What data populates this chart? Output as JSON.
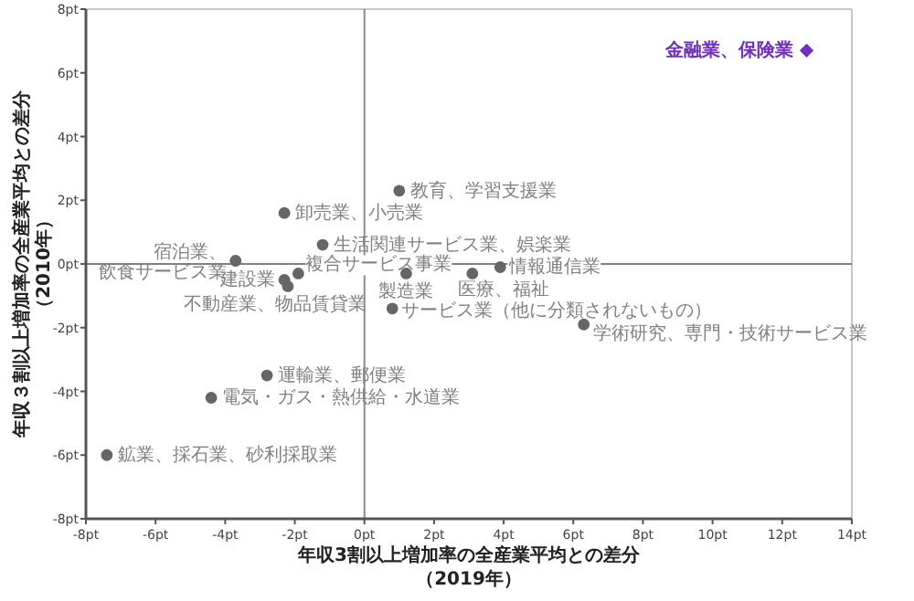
{
  "chart_data": {
    "type": "scatter",
    "xlabel": "年収3割以上増加率の全産業平均との差分（2019年）",
    "ylabel": "年収３割以上増加率の全産業平均との差分（2010年）",
    "xlim": [
      -8,
      14
    ],
    "ylim": [
      -8,
      8
    ],
    "xticks": [
      {
        "value": -8,
        "label": "-8pt"
      },
      {
        "value": -6,
        "label": "-6pt"
      },
      {
        "value": -4,
        "label": "-4pt"
      },
      {
        "value": -2,
        "label": "-2pt"
      },
      {
        "value": 0,
        "label": "0pt"
      },
      {
        "value": 2,
        "label": "2pt"
      },
      {
        "value": 4,
        "label": "4pt"
      },
      {
        "value": 6,
        "label": "6pt"
      },
      {
        "value": 8,
        "label": "8pt"
      },
      {
        "value": 10,
        "label": "10pt"
      },
      {
        "value": 12,
        "label": "12pt"
      },
      {
        "value": 14,
        "label": "14pt"
      }
    ],
    "yticks": [
      {
        "value": -8,
        "label": "-8pt"
      },
      {
        "value": -6,
        "label": "-6pt"
      },
      {
        "value": -4,
        "label": "-4pt"
      },
      {
        "value": -2,
        "label": "-2pt"
      },
      {
        "value": 0,
        "label": "0pt"
      },
      {
        "value": 2,
        "label": "2pt"
      },
      {
        "value": 4,
        "label": "4pt"
      },
      {
        "value": 6,
        "label": "6pt"
      },
      {
        "value": 8,
        "label": "8pt"
      }
    ],
    "ref_lines": [
      {
        "axis": "x",
        "value": 0,
        "color": "#8c8c8c"
      },
      {
        "axis": "y",
        "value": 0,
        "color": "#7f7f7f"
      }
    ],
    "series": [
      {
        "color": "#666666",
        "marker": "circle",
        "x": [
          1.0,
          -2.3,
          -1.2,
          -3.7,
          -1.9,
          -2.3,
          -2.2,
          1.2,
          3.1,
          3.9,
          0.8,
          6.3,
          -2.8,
          -4.4,
          -7.4
        ],
        "values": [
          2.3,
          1.6,
          0.6,
          0.1,
          -0.3,
          -0.5,
          -0.7,
          -0.3,
          -0.3,
          -0.1,
          -1.4,
          -1.9,
          -3.5,
          -4.2,
          -6.0
        ],
        "value_labels": [
          "教育、学習支援業",
          "卸売業、小売業",
          "生活関連サービス業、娯楽業",
          "宿泊業、飲食サービス業",
          "複合サービス事業",
          "建設業",
          "不動産業、物品賃貸業",
          "製造業",
          "医療、福祉",
          "情報通信業",
          "サービス業（他に分類されないもの）",
          "学術研究、専門・技術サービス業",
          "運輸業、郵便業",
          "電気・ガス・熱供給・水道業",
          "鉱業、採石業、砂利採取業"
        ]
      },
      {
        "color": "#7030c0",
        "marker": "diamond",
        "x": [
          12.7
        ],
        "values": [
          6.7
        ],
        "value_labels": [
          "金融業、保険業"
        ]
      }
    ]
  }
}
